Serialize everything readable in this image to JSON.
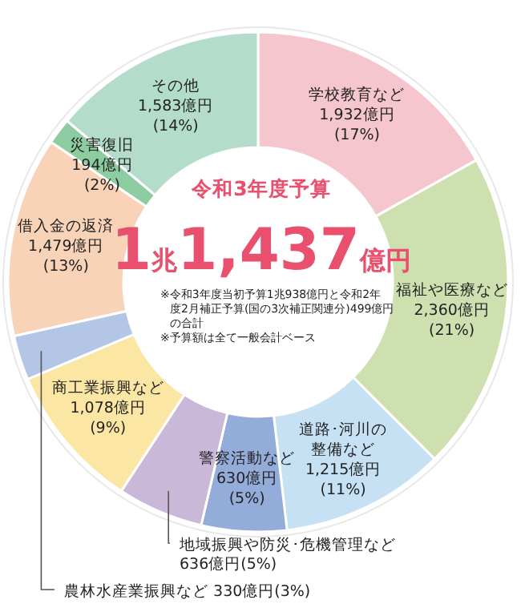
{
  "chart_data": {
    "type": "donut",
    "title": "令和3年度予算",
    "subtitle": "1兆1,437億円",
    "categories": [
      "学校教育など",
      "福祉や医療など",
      "道路･河川の整備など",
      "警察活動など",
      "地域振興や防災･危機管理など",
      "商工業振興など",
      "農林水産業振興など",
      "借入金の返済",
      "災害復旧",
      "その他"
    ],
    "values": [
      1932,
      2360,
      1215,
      630,
      636,
      1078,
      330,
      1479,
      194,
      1583
    ],
    "colors": [
      "#f6c6cf",
      "#cfe0b0",
      "#c6e1f3",
      "#94acd9",
      "#c9b8d8",
      "#fce6a4",
      "#b4c6e6",
      "#f9d3b8",
      "#8ccca0",
      "#b3dccb"
    ],
    "value_labels": [
      "1,932億円(17%)",
      "2,360億円(21%)",
      "1,215億円(11%)",
      "630億円(5%)",
      "636億円(5%)",
      "1,078億円(9%)",
      "330億円(3%)",
      "1,479億円(13%)",
      "194億円(2%)",
      "1,583億円(14%)"
    ],
    "annotations": [
      "※令和3年度当初予算1兆938億円と令和2年度2月補正予算(国の3次補正関連分)499億円の合計",
      "※予算額は全て一般会計ベース"
    ]
  }
}
